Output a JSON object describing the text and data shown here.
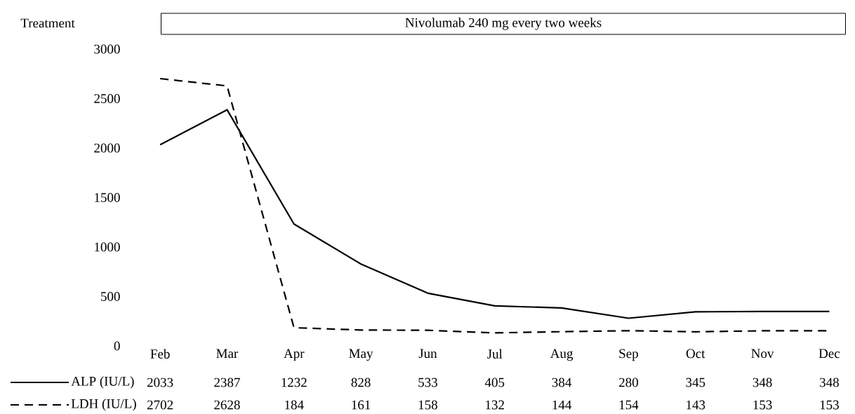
{
  "chart_data": {
    "type": "line",
    "categories": [
      "Feb",
      "Mar",
      "Apr",
      "May",
      "Jun",
      "Jul",
      "Aug",
      "Sep",
      "Oct",
      "Nov",
      "Dec"
    ],
    "series": [
      {
        "name": "ALP (IU/L)",
        "color": "#000000",
        "line_style": "solid",
        "values": [
          2033,
          2387,
          1232,
          828,
          533,
          405,
          384,
          280,
          345,
          348,
          348
        ]
      },
      {
        "name": "LDH (IU/L)",
        "color": "#000000",
        "line_style": "dashed",
        "values": [
          2702,
          2628,
          184,
          161,
          158,
          132,
          144,
          154,
          143,
          153,
          153
        ]
      }
    ],
    "ylim": [
      0,
      3000
    ],
    "yticks": [
      0,
      500,
      1000,
      1500,
      2000,
      2500,
      3000
    ],
    "data_labels": true,
    "legend": "bottom left",
    "grid": false,
    "marker": "none",
    "annotations": [
      "Treatment",
      "Nivolumab 240 mg every two weeks"
    ]
  }
}
